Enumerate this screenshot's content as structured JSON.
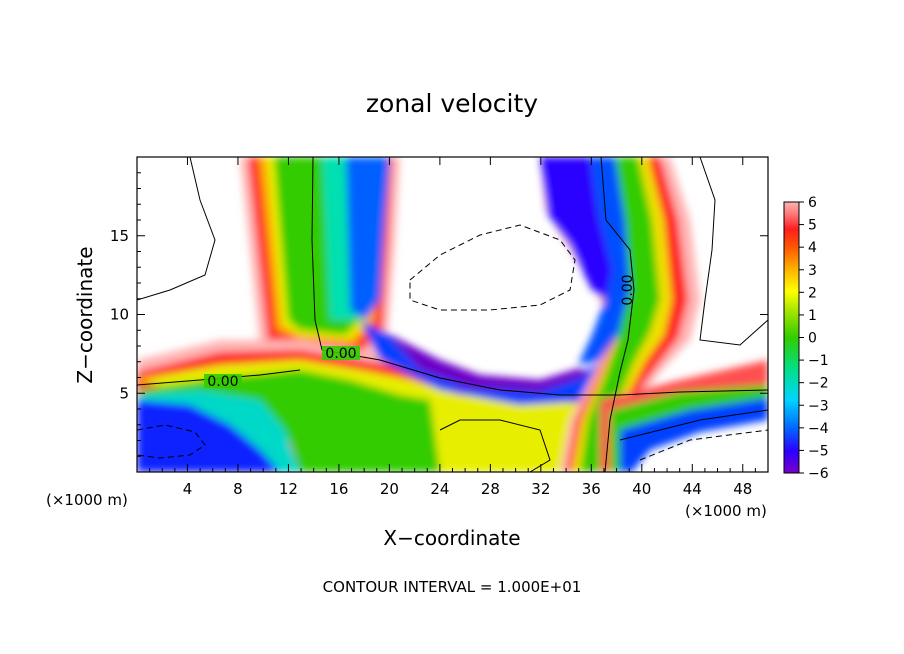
{
  "chart_data": {
    "type": "heatmap",
    "title": "zonal velocity",
    "xlabel": "X−coordinate",
    "ylabel": "Z−coordinate",
    "x_unit_label": "(×1000 m)",
    "x_unit_label_right": "(×1000 m)",
    "xlim": [
      0,
      50
    ],
    "ylim": [
      0,
      20
    ],
    "x_ticks": [
      4,
      8,
      12,
      16,
      20,
      24,
      28,
      32,
      36,
      40,
      44,
      48
    ],
    "y_ticks": [
      5,
      10,
      15
    ],
    "footer": "CONTOUR INTERVAL = 1.000E+01",
    "colorbar": {
      "ticks": [
        "6",
        "5",
        "4",
        "3",
        "2",
        "1",
        "0",
        "−1",
        "−2",
        "−3",
        "−4",
        "−5",
        "−6"
      ],
      "min": -6,
      "max": 6
    },
    "contour_labels": [
      "0.00",
      "0.00",
      "0.00"
    ],
    "colormap": [
      "#7a00c8",
      "#2c00ff",
      "#006cff",
      "#00d4ff",
      "#00e08a",
      "#33cc00",
      "#a8e600",
      "#ffff00",
      "#ffb400",
      "#ff5a00",
      "#ff1e1e",
      "#ff7f7f",
      "#ffb3b3"
    ]
  }
}
